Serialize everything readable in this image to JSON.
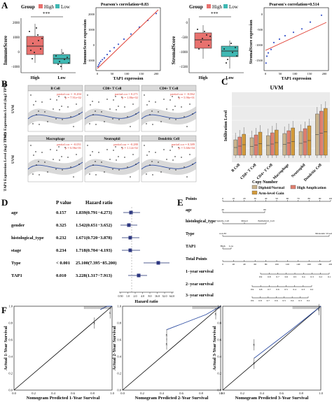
{
  "panels": {
    "A": {
      "letter": "A",
      "immune_box": {
        "legend_title": "Group",
        "legend_high": "High",
        "legend_low": "Low",
        "sig": "***",
        "ylabel": "ImmuneScore",
        "yticks": [
          "2000",
          "1000",
          "0",
          "-1000"
        ],
        "xticks": [
          "High",
          "Low"
        ]
      },
      "immune_scatter": {
        "title": "Pearson's correlation=0.83",
        "xlabel": "TAP1 expression",
        "ylabel": "ImmuneScore expression",
        "xticks": [
          "0",
          "50",
          "100",
          "150",
          "200"
        ],
        "yticks": [
          "2000",
          "1000",
          "0",
          "-1000"
        ]
      },
      "stromal_box": {
        "legend_title": "Group",
        "legend_high": "High",
        "legend_low": "Low",
        "sig": "***",
        "ylabel": "StromalScore",
        "yticks": [
          "0",
          "-500",
          "-1000",
          "-1500"
        ],
        "xticks": [
          "High",
          "Low"
        ]
      },
      "stromal_scatter": {
        "title": "Pearson's correlation=0.514",
        "xlabel": "TAP1 expression",
        "ylabel": "StromalScore expression",
        "xticks": [
          "0",
          "50",
          "100",
          "150",
          "200"
        ],
        "yticks": [
          "0",
          "-500",
          "-1000",
          "-1500"
        ]
      }
    },
    "B": {
      "letter": "B",
      "ylabel": "TAP1 Expression Level (log2 TPM)",
      "row_label": "UVM",
      "cells": [
        {
          "title": "B Cell",
          "cor": "partial.cor = -0.204",
          "p": "p = 7.91e-02"
        },
        {
          "title": "CD8+ T Cell",
          "cor": "partial.cor = 0.271",
          "p": "p = 1.86e-02"
        },
        {
          "title": "CD4+ T Cell",
          "cor": "partial.cor = -0.062",
          "p": "p = 5.96e-01"
        },
        {
          "title": "Macrophage",
          "cor": "partial.cor = -0.051",
          "p": "p = 6.96e-01"
        },
        {
          "title": "Neutrophil",
          "cor": "partial.cor = -0.280",
          "p": "p = 1.12e-02"
        },
        {
          "title": "Dendritic Cell",
          "cor": "partial.cor = 0.389",
          "p": "p = 5.60e-04"
        }
      ]
    },
    "C": {
      "letter": "C",
      "title": "UVM",
      "ylabel": "Infiltration Level",
      "categories": [
        "B Cell",
        "CD8+ T Cell",
        "CD4+ T Cell",
        "Macrophage",
        "Neutrophil",
        "Dendritic Cell"
      ],
      "legend_title": "Copy Number",
      "legend_items": [
        "Diploid/Normal",
        "High Amplication",
        "Arm-level Gain"
      ],
      "colors": {
        "diploid": "#c9b38c",
        "high_amp": "#e07f6f",
        "arm_gain": "#d39a3a"
      }
    },
    "D": {
      "letter": "D",
      "col_pvalue": "P value",
      "col_hr": "Hazard ratio",
      "rows": [
        {
          "name": "age",
          "p": "0.157",
          "hr": "1.839(0.791−4.273)"
        },
        {
          "name": "gender",
          "p": "0.325",
          "hr": "1.542(0.651−3.652)"
        },
        {
          "name": "histological_type",
          "p": "0.232",
          "hr": "1.671(0.720−3.878)"
        },
        {
          "name": "stage",
          "p": "0.234",
          "hr": "1.718(0.704−4.193)"
        },
        {
          "name": "Type",
          "p": "< 0.001",
          "hr": "25.100(7.395−85.200)"
        },
        {
          "name": "TAP1",
          "p": "0.010",
          "hr": "3.228(1.317−7.913)"
        }
      ],
      "xlabel": "Hazard ratio",
      "xticks": [
        "0.50",
        "1.0",
        "2.0",
        "4.0",
        "8.0",
        "16.0",
        "32.0",
        "64.0"
      ]
    },
    "E": {
      "letter": "E",
      "rows": [
        {
          "name": "Points",
          "ticks": [
            "0",
            "10",
            "20",
            "30",
            "40",
            "50",
            "60",
            "70",
            "80",
            "90",
            "100"
          ]
        },
        {
          "name": "age",
          "ticks": [
            "40",
            "80"
          ]
        },
        {
          "name": "histological_type",
          "ticks": [
            "Spindle_Cell",
            "Mixed",
            "Epithelioid_Cell"
          ]
        },
        {
          "name": "Type",
          "ticks": [
            "non-M",
            "Metastatic Uveal Melanoma"
          ]
        },
        {
          "name": "TAP1",
          "ticks": [
            "High",
            "Low"
          ]
        },
        {
          "name": "Total Points",
          "ticks": [
            "0",
            "20",
            "40",
            "60",
            "80",
            "100",
            "120",
            "140",
            "160",
            "180",
            "200"
          ]
        },
        {
          "name": "1−year survival",
          "ticks": [
            "0.9",
            "0.8",
            "0.7",
            "0.6",
            "0.5",
            "0.4",
            "0.3",
            "0.2",
            "0.1"
          ]
        },
        {
          "name": "2−year survival",
          "ticks": [
            "0.9",
            "0.8",
            "0.7",
            "0.6",
            "0.5",
            "0.4",
            "0.3",
            "0.2"
          ]
        },
        {
          "name": "3−year survival",
          "ticks": [
            "0.9",
            "0.8",
            "0.7",
            "0.6",
            "0.5",
            "0.4",
            "0.3",
            "0.2"
          ]
        }
      ]
    },
    "F": {
      "letter": "F",
      "plots": [
        {
          "xlabel": "Nomogram Predicted 1-Year Survival",
          "ylabel": "Actual 1-Year Survival"
        },
        {
          "xlabel": "Nomogram Predicted 2-Year Survival",
          "ylabel": "Actual 2-Year Survival"
        },
        {
          "xlabel": "Nomogram Predicted 3-Year Survival",
          "ylabel": "Actual 3-Year Survival"
        }
      ],
      "ticks": [
        "0.0",
        "0.2",
        "0.4",
        "0.6",
        "0.8",
        "1.0"
      ]
    }
  },
  "chart_data": [
    {
      "type": "scatter",
      "title": "Pearson's correlation=0.83",
      "xlabel": "TAP1 expression",
      "ylabel": "ImmuneScore expression",
      "xlim": [
        0,
        220
      ],
      "ylim": [
        -1200,
        2400
      ],
      "series": [
        {
          "x": [
            2,
            5,
            8,
            12,
            18,
            25,
            35,
            45,
            60,
            75,
            95,
            120,
            150,
            180,
            210
          ],
          "y": [
            -1000,
            -900,
            -800,
            -700,
            -600,
            -500,
            -300,
            -100,
            100,
            300,
            600,
            900,
            1300,
            1700,
            2100
          ]
        }
      ]
    },
    {
      "type": "scatter",
      "title": "Pearson's correlation=0.514",
      "xlabel": "TAP1 expression",
      "ylabel": "StromalScore expression",
      "xlim": [
        0,
        220
      ],
      "ylim": [
        -1700,
        100
      ],
      "series": [
        {
          "x": [
            2,
            5,
            10,
            20,
            30,
            50,
            70,
            100,
            130,
            160,
            200
          ],
          "y": [
            -1500,
            -1300,
            -1200,
            -1100,
            -900,
            -800,
            -700,
            -600,
            -500,
            -300,
            -100
          ]
        }
      ]
    }
  ]
}
